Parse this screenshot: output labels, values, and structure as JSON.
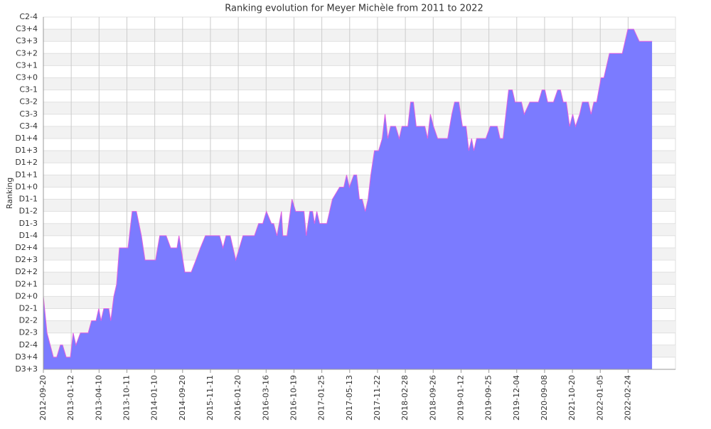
{
  "chart_data": {
    "type": "area",
    "title": "Ranking evolution for Meyer Michèle from 2011 to 2022",
    "y_label": "Ranking",
    "color": "#7b7bff",
    "line_color": "#e060e0",
    "grid": true,
    "xlim": [
      0,
      227
    ],
    "xticks": [
      {
        "value": 0,
        "label": "2012-09-20"
      },
      {
        "value": 10,
        "label": "2013-01-12"
      },
      {
        "value": 20,
        "label": "2013-04-10"
      },
      {
        "value": 30,
        "label": "2013-10-11"
      },
      {
        "value": 40,
        "label": "2014-01-10"
      },
      {
        "value": 50,
        "label": "2014-09-20"
      },
      {
        "value": 60,
        "label": "2015-11-11"
      },
      {
        "value": 70,
        "label": "2016-01-20"
      },
      {
        "value": 80,
        "label": "2016-03-16"
      },
      {
        "value": 90,
        "label": "2016-10-19"
      },
      {
        "value": 100,
        "label": "2017-01-25"
      },
      {
        "value": 110,
        "label": "2017-05-13"
      },
      {
        "value": 120,
        "label": "2017-11-22"
      },
      {
        "value": 130,
        "label": "2018-02-28"
      },
      {
        "value": 140,
        "label": "2018-09-26"
      },
      {
        "value": 150,
        "label": "2019-01-12"
      },
      {
        "value": 160,
        "label": "2019-09-25"
      },
      {
        "value": 170,
        "label": "2019-12-04"
      },
      {
        "value": 180,
        "label": "2020-09-08"
      },
      {
        "value": 190,
        "label": "2021-10-20"
      },
      {
        "value": 200,
        "label": "2022-01-05"
      },
      {
        "value": 210,
        "label": "2022-02-24"
      }
    ],
    "ylim": [
      0,
      29
    ],
    "yticks": [
      {
        "value": 0,
        "label": "D3+3"
      },
      {
        "value": 1,
        "label": "D3+4"
      },
      {
        "value": 2,
        "label": "D2-4"
      },
      {
        "value": 3,
        "label": "D2-3"
      },
      {
        "value": 4,
        "label": "D2-2"
      },
      {
        "value": 5,
        "label": "D2-1"
      },
      {
        "value": 6,
        "label": "D2+0"
      },
      {
        "value": 7,
        "label": "D2+1"
      },
      {
        "value": 8,
        "label": "D2+2"
      },
      {
        "value": 9,
        "label": "D2+3"
      },
      {
        "value": 10,
        "label": "D2+4"
      },
      {
        "value": 11,
        "label": "D1-4"
      },
      {
        "value": 12,
        "label": "D1-3"
      },
      {
        "value": 13,
        "label": "D1-2"
      },
      {
        "value": 14,
        "label": "D1-1"
      },
      {
        "value": 15,
        "label": "D1+0"
      },
      {
        "value": 16,
        "label": "D1+1"
      },
      {
        "value": 17,
        "label": "D1+2"
      },
      {
        "value": 18,
        "label": "D1+3"
      },
      {
        "value": 19,
        "label": "D1+4"
      },
      {
        "value": 20,
        "label": "C3-4"
      },
      {
        "value": 21,
        "label": "C3-3"
      },
      {
        "value": 22,
        "label": "C3-2"
      },
      {
        "value": 23,
        "label": "C3-1"
      },
      {
        "value": 24,
        "label": "C3+0"
      },
      {
        "value": 25,
        "label": "C3+1"
      },
      {
        "value": 26,
        "label": "C3+2"
      },
      {
        "value": 27,
        "label": "C3+3"
      },
      {
        "value": 28,
        "label": "C3+4"
      },
      {
        "value": 29,
        "label": "C2-4"
      }
    ],
    "x": [
      0,
      1.3,
      3.6,
      4.8,
      6.1,
      6.9,
      8.2,
      9.7,
      10.7,
      11.7,
      13.3,
      16.1,
      17.3,
      18.9,
      19.9,
      20.7,
      21.7,
      23.5,
      24.2,
      25.3,
      26.3,
      27.3,
      30.4,
      31.9,
      33.4,
      35.2,
      36.5,
      40.3,
      41.8,
      44.1,
      45.7,
      48.0,
      48.7,
      50.8,
      53.1,
      54.8,
      56.4,
      58.2,
      63.3,
      64.5,
      65.6,
      67.1,
      68.1,
      69.1,
      71.7,
      75.8,
      77.3,
      78.8,
      80.1,
      81.9,
      82.7,
      83.9,
      85.5,
      86.0,
      87.5,
      89.3,
      90.6,
      93.6,
      94.4,
      95.7,
      96.7,
      97.4,
      98.2,
      99.2,
      101.8,
      103.8,
      106.4,
      107.9,
      108.9,
      109.9,
      111.5,
      112.5,
      113.5,
      114.5,
      115.6,
      116.6,
      117.6,
      118.9,
      120.4,
      121.7,
      122.7,
      123.7,
      124.7,
      126.5,
      127.8,
      128.8,
      130.9,
      131.9,
      132.9,
      133.9,
      137.0,
      138.0,
      139.0,
      140.1,
      141.6,
      145.2,
      146.7,
      147.7,
      149.2,
      150.5,
      151.8,
      152.8,
      153.8,
      154.6,
      155.6,
      158.9,
      160.5,
      163.0,
      164.0,
      165.1,
      167.1,
      168.4,
      169.4,
      171.7,
      172.7,
      174.7,
      177.8,
      179.1,
      180.1,
      181.1,
      183.2,
      184.7,
      185.7,
      186.7,
      187.8,
      189.0,
      190.1,
      191.1,
      192.6,
      193.6,
      195.7,
      196.7,
      197.7,
      198.7,
      200.3,
      201.3,
      203.3,
      207.9,
      209.9,
      212.0,
      214.0,
      218.6
    ],
    "values": [
      6,
      3,
      1,
      1,
      2,
      2,
      1,
      1,
      3,
      2,
      3,
      3,
      4,
      4,
      5,
      4,
      5,
      5,
      4,
      6,
      7,
      10,
      10,
      13,
      13,
      11,
      9,
      9,
      11,
      11,
      10,
      10,
      11,
      8,
      8,
      9,
      10,
      11,
      11,
      10,
      11,
      11,
      10,
      9,
      11,
      11,
      12,
      12,
      13,
      12,
      12,
      11,
      13,
      11,
      11,
      14,
      13,
      13,
      11,
      13,
      13,
      12,
      13,
      12,
      12,
      14,
      15,
      15,
      16,
      15,
      16,
      16,
      14,
      14,
      13,
      14,
      16,
      18,
      18,
      19,
      21,
      19,
      20,
      20,
      19,
      20,
      20,
      22,
      22,
      20,
      20,
      19,
      21,
      20,
      19,
      19,
      21,
      22,
      22,
      20,
      20,
      18,
      19,
      18,
      19,
      19,
      20,
      20,
      19,
      19,
      23,
      23,
      22,
      22,
      21,
      22,
      22,
      23,
      23,
      22,
      22,
      23,
      23,
      22,
      22,
      20,
      21,
      20,
      21,
      22,
      22,
      21,
      22,
      22,
      24,
      24,
      26,
      26,
      28,
      28,
      27,
      27
    ]
  }
}
